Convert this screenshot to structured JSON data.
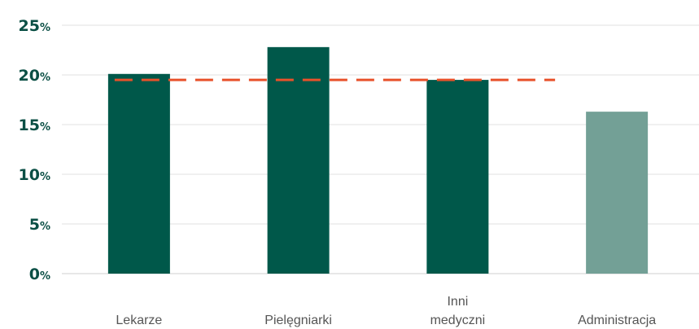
{
  "chart_data": {
    "type": "bar",
    "categories": [
      [
        "Lekarze"
      ],
      [
        "Pielęgniarki"
      ],
      [
        "Inni",
        "medyczni"
      ],
      [
        "Administracja"
      ]
    ],
    "values": [
      20.1,
      22.8,
      19.5,
      16.3
    ],
    "bar_colors": [
      "#00584a",
      "#00584a",
      "#00584a",
      "#73a096"
    ],
    "reference_line": {
      "value": 19.5,
      "style": "dashed",
      "color": "#e8512a"
    },
    "ylim": [
      0,
      25
    ],
    "yticks": [
      0,
      5,
      10,
      15,
      20,
      25
    ],
    "ytick_suffix": "%",
    "grid": true,
    "title": "",
    "xlabel": "",
    "ylabel": ""
  }
}
